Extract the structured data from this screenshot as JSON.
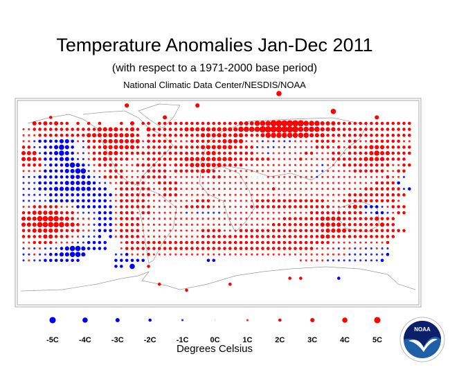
{
  "title": "Temperature Anomalies Jan-Dec 2011",
  "subtitle": "(with respect to a 1971-2000 base period)",
  "source": "National Climatic Data Center/NESDIS/NOAA",
  "legend": {
    "items": [
      {
        "label": "-5C",
        "value": -5
      },
      {
        "label": "-4C",
        "value": -4
      },
      {
        "label": "-3C",
        "value": -3
      },
      {
        "label": "-2C",
        "value": -2
      },
      {
        "label": "-1C",
        "value": -1
      },
      {
        "label": "0C",
        "value": 0
      },
      {
        "label": "1C",
        "value": 1
      },
      {
        "label": "2C",
        "value": 2
      },
      {
        "label": "3C",
        "value": 3
      },
      {
        "label": "4C",
        "value": 4
      },
      {
        "label": "5C",
        "value": 5
      }
    ],
    "units": "Degrees Celsius"
  },
  "logo": {
    "text": "NOAA"
  },
  "colors": {
    "warm": "#ff0000",
    "cold": "#0000ff",
    "zero": "#bbbbbb",
    "coast": "#999999"
  },
  "map_data": {
    "encoding": "per 5-degree cell: '.' no data, '0' = 0C, '1'-'5' = +1..+5C, 'a'-'e' = -1..-5C",
    "rows": [
      "..3232322.2.2.2...2.3.22.22222222222222233344455555544433322222222222222",
      "1122222222222233332232.3222222333333333344445555555444433322222222222222",
      "1112222222223333333332.2222222222333332332223444444443332222222222222222",
      "11abbbbccb1a22233333331222221112222223333111a1a1aa1111222211221122222211",
      "22aabbcdcb.a2223333332122222222223333332222a1aa1a11111222121222233322222",
      "333abbcdcb1a122333222222222222222233222222211a111111221112212222343322222",
      "3332bbbccbaa12232222111222222233333333322222221111121111122222233332222",
      "2222abbbcdcba122221112222221222333333222211111111111111a1112222222221122",
      "1111bbbbccdda11122211112222122222332111111111111111111aa111112222221122",
      "aaabbbbbbcccbaa222211122222111111112211111000111111111a111111111111211a",
      "aaabbbbbcccccbaa11222221122221111111111111111111111111111111111112222b",
      "aaabbbcccccccbbb.12222221122211111111111111111211111111111111112222222ab",
      "aaaaabbbbbbbbbbbb122222211222111111111111111111111111111111122222222222",
      "aaaaabbbbbbbbbbba12222211111111122211111111222222222222211122222222221",
      "1122222111bbbbbbb1222222111111222221111111222222222222222111232bbba1222",
      "22333332221aaabbb1222122111111a1aaaaa11111111111111112222222222aabba122",
      "3334444332111abbb1222211111111111111111111111111222222233332222223222",
      "3334444433211abbb1222211111111111111111111111122222222233332222222322",
      "2233333222211abbb122221111111111122221112222222222222222333322222222222",
      "22223322211aaab.b1222211111111111222222222222222222222233222222222222",
      "1122221111aabbbb..12222222222222222222222222222222222222211111111112",
      "a1a1aaabcddcbbbb..1222222222222222222222222222222222221111a11a1aa1aa",
      "aa1aabbccddc.....aab1112111111111111111111111111111111111111aaaaaaab",
      "a1aabbbbbbb......bbbbbb...........bb...............11111aaaaaaaaaab",
      ".................bb.d..2..............................................."
    ],
    "isolated": [
      {
        "col": 5,
        "row": -1,
        "value": 2
      },
      {
        "col": 19,
        "row": -3,
        "value": 3
      },
      {
        "col": 32,
        "row": -3,
        "value": 3
      },
      {
        "col": 47,
        "row": -5,
        "value": 4
      },
      {
        "col": 57,
        "row": -2,
        "value": 4
      },
      {
        "col": 65,
        "row": -1,
        "value": 3
      },
      {
        "col": 26,
        "row": -1,
        "value": 3
      },
      {
        "col": 25,
        "row": 27,
        "value": 2
      },
      {
        "col": 51,
        "row": 26,
        "value": 2
      },
      {
        "col": 49,
        "row": 26,
        "value": 2
      },
      {
        "col": 58,
        "row": 26,
        "value": -2
      },
      {
        "col": 38,
        "row": 27,
        "value": 2
      },
      {
        "col": 30,
        "row": 28,
        "value": 2
      }
    ]
  }
}
